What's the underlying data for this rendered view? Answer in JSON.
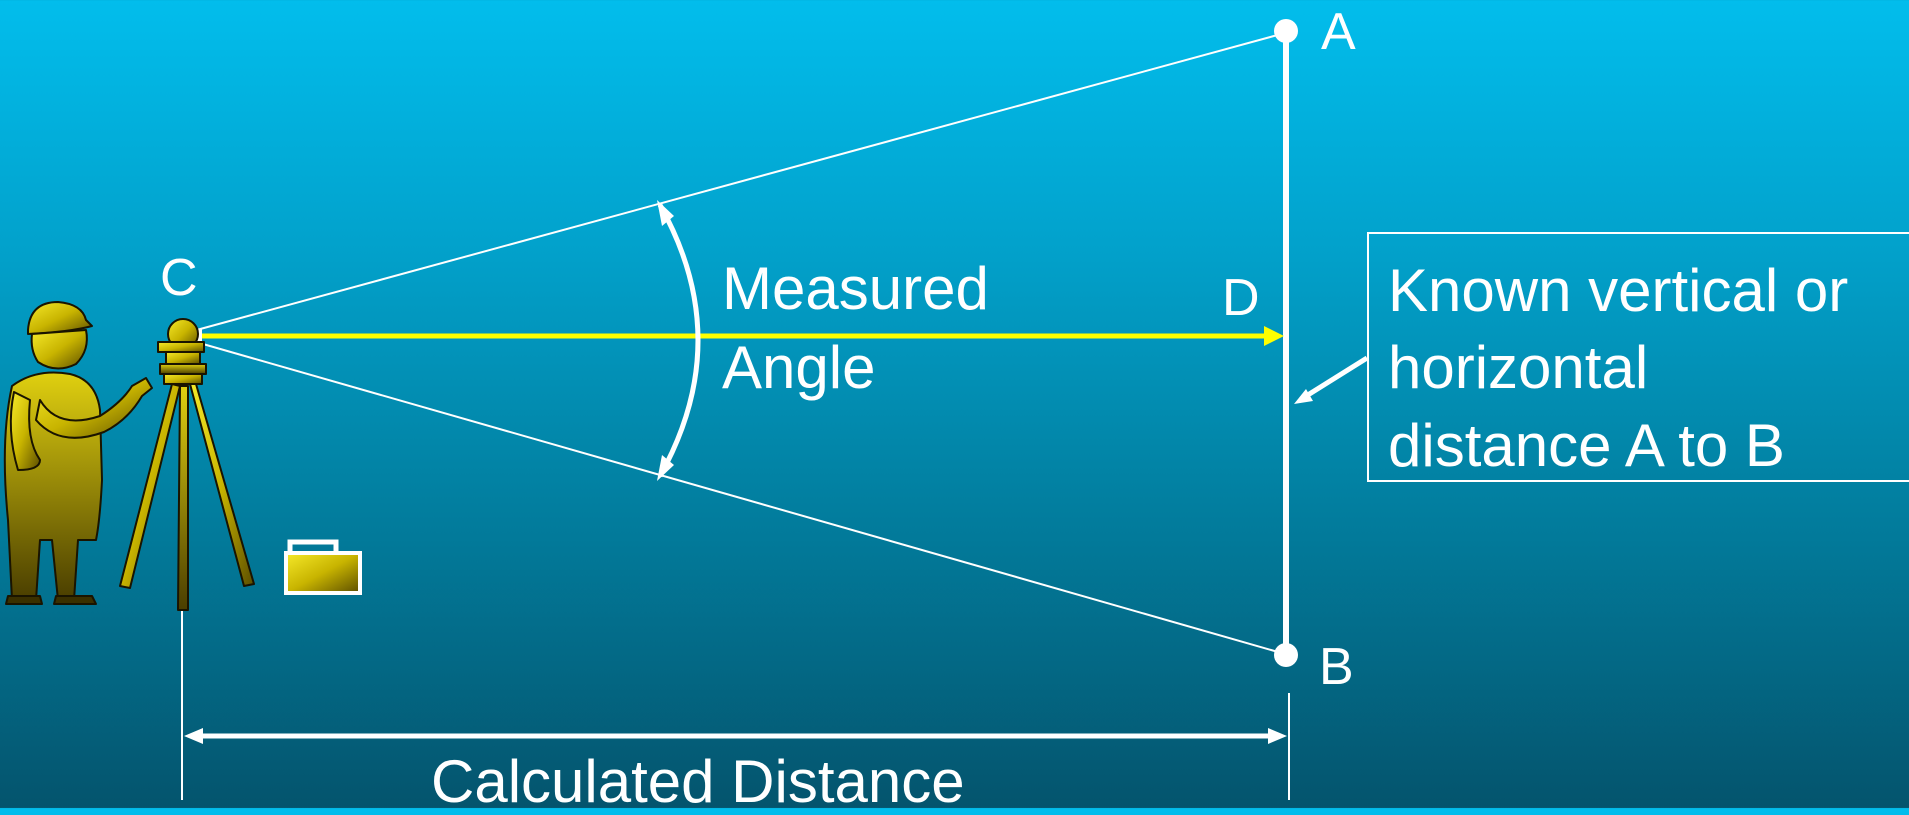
{
  "points": {
    "a": "A",
    "b": "B",
    "c": "C",
    "d": "D"
  },
  "measured_angle": {
    "line1": "Measured",
    "line2": "Angle"
  },
  "known_distance": {
    "line1": "Known vertical or",
    "line2": "horizontal",
    "line3": "distance A to B"
  },
  "calculated_distance": "Calculated Distance",
  "colors": {
    "background_top": "#02bdec",
    "background_bottom": "#04546d",
    "lines": "#ffffff",
    "sight_line": "#ffff00",
    "surveyor": "#c4b000"
  },
  "icons": [
    "surveyor-figure",
    "theodolite-tripod-icon",
    "instrument-case-icon"
  ]
}
